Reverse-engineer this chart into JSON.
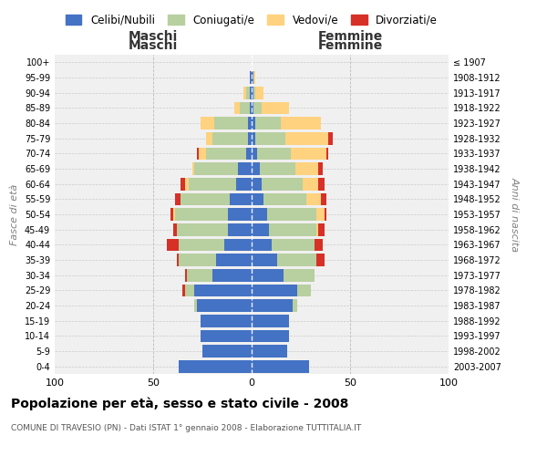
{
  "age_groups": [
    "0-4",
    "5-9",
    "10-14",
    "15-19",
    "20-24",
    "25-29",
    "30-34",
    "35-39",
    "40-44",
    "45-49",
    "50-54",
    "55-59",
    "60-64",
    "65-69",
    "70-74",
    "75-79",
    "80-84",
    "85-89",
    "90-94",
    "95-99",
    "100+"
  ],
  "birth_years": [
    "2003-2007",
    "1998-2002",
    "1993-1997",
    "1988-1992",
    "1983-1987",
    "1978-1982",
    "1973-1977",
    "1968-1972",
    "1963-1967",
    "1958-1962",
    "1953-1957",
    "1948-1952",
    "1943-1947",
    "1938-1942",
    "1933-1937",
    "1928-1932",
    "1923-1927",
    "1918-1922",
    "1913-1917",
    "1908-1912",
    "≤ 1907"
  ],
  "male": {
    "celibi": [
      37,
      25,
      26,
      26,
      28,
      29,
      20,
      18,
      14,
      12,
      12,
      11,
      8,
      7,
      3,
      2,
      2,
      1,
      1,
      1,
      0
    ],
    "coniugati": [
      0,
      0,
      0,
      0,
      1,
      5,
      13,
      19,
      23,
      26,
      27,
      25,
      24,
      22,
      20,
      18,
      17,
      5,
      2,
      0,
      0
    ],
    "vedovi": [
      0,
      0,
      0,
      0,
      0,
      0,
      0,
      0,
      0,
      0,
      1,
      0,
      2,
      1,
      4,
      3,
      7,
      3,
      1,
      0,
      0
    ],
    "divorziati": [
      0,
      0,
      0,
      0,
      0,
      1,
      1,
      1,
      6,
      2,
      1,
      3,
      2,
      0,
      1,
      0,
      0,
      0,
      0,
      0,
      0
    ]
  },
  "female": {
    "nubili": [
      29,
      18,
      19,
      19,
      21,
      23,
      16,
      13,
      10,
      9,
      8,
      6,
      5,
      4,
      3,
      2,
      2,
      1,
      1,
      1,
      0
    ],
    "coniugate": [
      0,
      0,
      0,
      0,
      2,
      7,
      16,
      20,
      22,
      24,
      25,
      22,
      21,
      18,
      17,
      15,
      13,
      4,
      1,
      0,
      0
    ],
    "vedove": [
      0,
      0,
      0,
      0,
      0,
      0,
      0,
      0,
      0,
      1,
      4,
      7,
      8,
      12,
      18,
      22,
      20,
      14,
      4,
      1,
      0
    ],
    "divorziate": [
      0,
      0,
      0,
      0,
      0,
      0,
      0,
      4,
      4,
      3,
      1,
      3,
      3,
      2,
      1,
      2,
      0,
      0,
      0,
      0,
      0
    ]
  },
  "colors": {
    "celibi": "#4472c4",
    "coniugati": "#b8cfa0",
    "vedovi": "#ffd280",
    "divorziati": "#d73027"
  },
  "title": "Popolazione per età, sesso e stato civile - 2008",
  "subtitle": "COMUNE DI TRAVESIO (PN) - Dati ISTAT 1° gennaio 2008 - Elaborazione TUTTITALIA.IT",
  "xlabel_left": "Maschi",
  "xlabel_right": "Femmine",
  "ylabel_left": "Fasce di età",
  "ylabel_right": "Anni di nascita",
  "xlim": 100,
  "legend_labels": [
    "Celibi/Nubili",
    "Coniugati/e",
    "Vedovi/e",
    "Divorziati/e"
  ],
  "bg_color": "#f0f0f0"
}
